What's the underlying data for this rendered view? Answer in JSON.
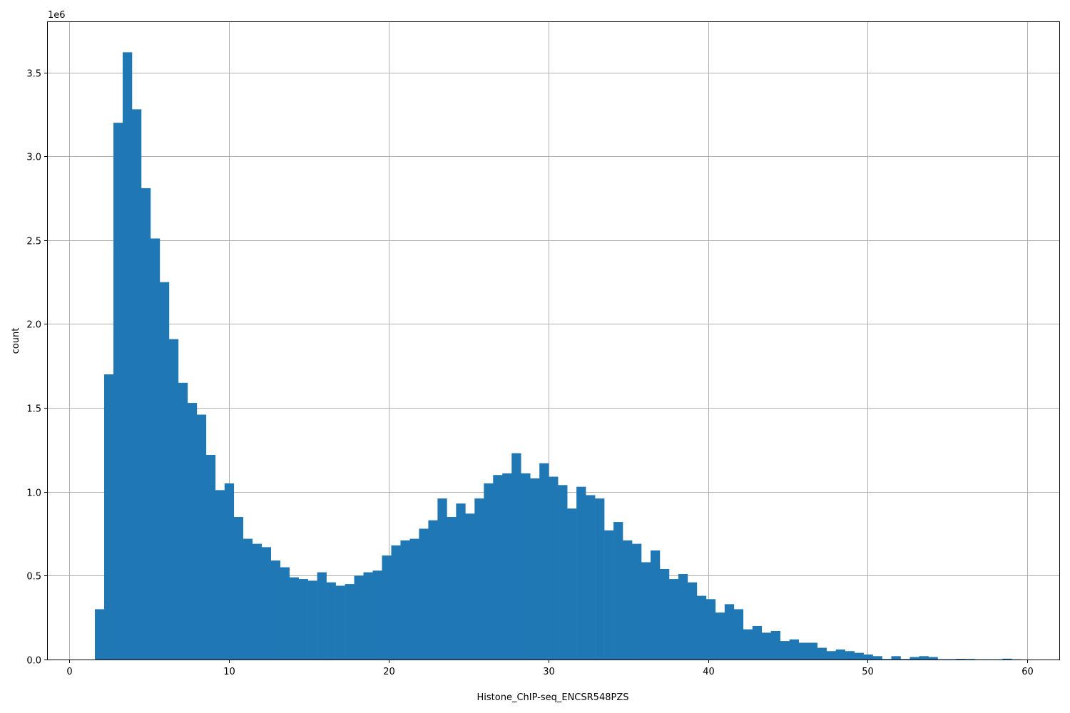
{
  "chart_data": {
    "type": "bar",
    "subtype": "histogram",
    "xlabel": "Histone_ChIP-seq_ENCSR548PZS",
    "ylabel": "count",
    "y_scale_label": "1e6",
    "xlim": [
      -1.35,
      62.0
    ],
    "ylim": [
      0,
      3.8
    ],
    "grid": true,
    "bar_color": "#1f77b4",
    "bin_start": 1.6,
    "bin_width": 0.58,
    "values": [
      0.3,
      1.7,
      3.2,
      3.62,
      3.28,
      2.81,
      2.51,
      2.25,
      1.91,
      1.65,
      1.53,
      1.46,
      1.22,
      1.01,
      1.05,
      0.85,
      0.72,
      0.69,
      0.67,
      0.59,
      0.55,
      0.49,
      0.48,
      0.47,
      0.52,
      0.46,
      0.44,
      0.45,
      0.5,
      0.52,
      0.53,
      0.62,
      0.68,
      0.71,
      0.72,
      0.78,
      0.83,
      0.96,
      0.85,
      0.93,
      0.87,
      0.96,
      1.05,
      1.1,
      1.11,
      1.23,
      1.11,
      1.08,
      1.17,
      1.09,
      1.04,
      0.9,
      1.03,
      0.98,
      0.96,
      0.77,
      0.82,
      0.71,
      0.69,
      0.58,
      0.65,
      0.54,
      0.48,
      0.51,
      0.46,
      0.38,
      0.36,
      0.28,
      0.33,
      0.3,
      0.18,
      0.2,
      0.16,
      0.17,
      0.11,
      0.12,
      0.1,
      0.1,
      0.07,
      0.05,
      0.06,
      0.05,
      0.04,
      0.03,
      0.02,
      0.003,
      0.02,
      0.003,
      0.015,
      0.02,
      0.015,
      0.002,
      0.002,
      0.004,
      0.003,
      0.001,
      0.001,
      0.001,
      0.005,
      0.001
    ],
    "x_ticks": [
      {
        "value": 0,
        "label": "0"
      },
      {
        "value": 10,
        "label": "10"
      },
      {
        "value": 20,
        "label": "20"
      },
      {
        "value": 30,
        "label": "30"
      },
      {
        "value": 40,
        "label": "40"
      },
      {
        "value": 50,
        "label": "50"
      },
      {
        "value": 60,
        "label": "60"
      }
    ],
    "y_ticks": [
      {
        "value": 0.0,
        "label": "0.0"
      },
      {
        "value": 0.5,
        "label": "0.5"
      },
      {
        "value": 1.0,
        "label": "1.0"
      },
      {
        "value": 1.5,
        "label": "1.5"
      },
      {
        "value": 2.0,
        "label": "2.0"
      },
      {
        "value": 2.5,
        "label": "2.5"
      },
      {
        "value": 3.0,
        "label": "3.0"
      },
      {
        "value": 3.5,
        "label": "3.5"
      }
    ]
  }
}
